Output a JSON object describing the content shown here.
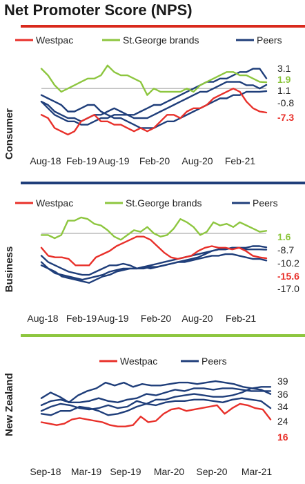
{
  "page": {
    "title": "Net Promoter Score (NPS)"
  },
  "colors": {
    "westpac": "#e8302a",
    "stgeorge": "#8dc63f",
    "peers": "#1f3e7a",
    "red_bar": "#d9291c",
    "navy_bar": "#1f3e7a",
    "green_bar": "#8dc63f"
  },
  "chart_data": [
    {
      "type": "line",
      "panel_label": "Consumer",
      "x_ticks": [
        "Aug-18",
        "Feb-19",
        "Aug-19",
        "Feb-20",
        "Aug-20",
        "Feb-21"
      ],
      "reference_line": 0,
      "ylim": [
        -18,
        8
      ],
      "series": [
        {
          "name": "Westpac",
          "color": "#e8302a",
          "values": [
            -8,
            -9,
            -12,
            -13,
            -14,
            -13,
            -10,
            -9,
            -8,
            -10,
            -10,
            -11,
            -11,
            -12,
            -13,
            -12,
            -13,
            -12,
            -10,
            -8,
            -8,
            -9,
            -7,
            -6,
            -6,
            -5,
            -3,
            -2,
            -1,
            0,
            -1,
            -4,
            -6,
            -7,
            -7.3
          ]
        },
        {
          "name": "St.George brands",
          "color": "#8dc63f",
          "values": [
            6,
            4,
            1,
            -1,
            0,
            1,
            2,
            3,
            3,
            4,
            7,
            5,
            4,
            4,
            3,
            2,
            -2,
            0,
            -1,
            -1,
            -1,
            -1,
            0,
            -1,
            1,
            2,
            3,
            4,
            5,
            5,
            4,
            4,
            3,
            2,
            1.9
          ]
        },
        {
          "name": "Peers",
          "color": "#1f3e7a",
          "values": [
            -4,
            -5,
            -7,
            -8,
            -9,
            -9,
            -10,
            -9,
            -8,
            -8,
            -7,
            -6,
            -7,
            -8,
            -8,
            -7,
            -6,
            -5,
            -5,
            -4,
            -3,
            -2,
            -1,
            0,
            1,
            2,
            2,
            3,
            3,
            4,
            5,
            5,
            6,
            6,
            3.1
          ]
        },
        {
          "name": "Peers",
          "color": "#1f3e7a",
          "values": [
            -4,
            -6,
            -8,
            -9,
            -10,
            -10,
            -11,
            -11,
            -10,
            -9,
            -9,
            -8,
            -8,
            -8,
            -9,
            -9,
            -9,
            -8,
            -7,
            -6,
            -5,
            -4,
            -3,
            -2,
            -1,
            -1,
            0,
            1,
            2,
            2,
            2,
            1,
            1,
            0,
            1.1
          ]
        },
        {
          "name": "Peers",
          "color": "#1f3e7a",
          "values": [
            -2,
            -3,
            -4,
            -5,
            -7,
            -7,
            -6,
            -5,
            -5,
            -7,
            -8,
            -9,
            -9,
            -10,
            -11,
            -12,
            -12,
            -12,
            -11,
            -10,
            -10,
            -9,
            -8,
            -7,
            -6,
            -5,
            -4,
            -3,
            -3,
            -2,
            -2,
            -1,
            -1,
            -1,
            -0.8
          ]
        }
      ],
      "end_labels": [
        {
          "text": "3.1",
          "color": "#222222",
          "bold": false,
          "value": 3.1
        },
        {
          "text": "1.9",
          "color": "#8dc63f",
          "bold": true,
          "value": 1.9
        },
        {
          "text": "1.1",
          "color": "#222222",
          "bold": false,
          "value": 1.1
        },
        {
          "text": "-0.8",
          "color": "#222222",
          "bold": false,
          "value": -0.8
        },
        {
          "text": "-7.3",
          "color": "#e8302a",
          "bold": true,
          "value": -7.3
        }
      ]
    },
    {
      "type": "line",
      "panel_label": "Business",
      "x_ticks": [
        "Aug-18",
        "Feb-19",
        "Aug-19",
        "Feb-20",
        "Aug-20",
        "Feb-21"
      ],
      "reference_line": 0,
      "ylim": [
        -32,
        13
      ],
      "series": [
        {
          "name": "Westpac",
          "color": "#e8302a",
          "values": [
            -9,
            -14,
            -15,
            -15,
            -16,
            -20,
            -20,
            -20,
            -15,
            -13,
            -11,
            -8,
            -6,
            -4,
            -2,
            -2,
            -4,
            -8,
            -12,
            -15,
            -16,
            -15,
            -14,
            -11,
            -9,
            -8,
            -9,
            -9,
            -10,
            -9,
            -11,
            -14,
            -15,
            -15.6
          ]
        },
        {
          "name": "St.George brands",
          "color": "#8dc63f",
          "values": [
            -1,
            -1,
            -3,
            -1,
            8,
            8,
            10,
            9,
            6,
            5,
            2,
            -2,
            -4,
            -1,
            2,
            1,
            4,
            0,
            -2,
            -1,
            3,
            9,
            7,
            4,
            -1,
            1,
            7,
            5,
            6,
            4,
            7,
            5,
            3,
            1,
            1.6
          ]
        },
        {
          "name": "Peers",
          "color": "#1f3e7a",
          "values": [
            -18,
            -22,
            -25,
            -26,
            -27,
            -28,
            -29,
            -28,
            -27,
            -26,
            -24,
            -23,
            -22,
            -22,
            -22,
            -22,
            -21,
            -21,
            -20,
            -19,
            -18,
            -18,
            -17,
            -16,
            -15,
            -14,
            -14,
            -13,
            -13,
            -14,
            -15,
            -16,
            -16,
            -17.0
          ]
        },
        {
          "name": "Peers",
          "color": "#1f3e7a",
          "values": [
            -14,
            -18,
            -20,
            -22,
            -24,
            -25,
            -26,
            -26,
            -24,
            -22,
            -20,
            -20,
            -19,
            -20,
            -22,
            -21,
            -20,
            -19,
            -18,
            -17,
            -16,
            -15,
            -14,
            -13,
            -12,
            -11,
            -10,
            -10,
            -9,
            -9,
            -10,
            -10,
            -10,
            -10.2
          ]
        },
        {
          "name": "Peers",
          "color": "#1f3e7a",
          "values": [
            -20,
            -22,
            -24,
            -27,
            -28,
            -29,
            -30,
            -31,
            -29,
            -27,
            -26,
            -24,
            -23,
            -22,
            -22,
            -21,
            -22,
            -21,
            -20,
            -19,
            -18,
            -17,
            -16,
            -15,
            -13,
            -11,
            -10,
            -10,
            -9,
            -9,
            -9,
            -8,
            -8,
            -8.7
          ]
        }
      ],
      "end_labels": [
        {
          "text": "1.6",
          "color": "#8dc63f",
          "bold": true,
          "value": 1.6
        },
        {
          "text": "-8.7",
          "color": "#222222",
          "bold": false,
          "value": -8.7
        },
        {
          "text": "-10.2",
          "color": "#222222",
          "bold": false,
          "value": -10.2
        },
        {
          "text": "-15.6",
          "color": "#e8302a",
          "bold": true,
          "value": -15.6
        },
        {
          "text": "-17.0",
          "color": "#222222",
          "bold": false,
          "value": -17.0
        }
      ]
    },
    {
      "type": "line",
      "panel_label": "New Zealand",
      "x_ticks": [
        "Sep-18",
        "Mar-19",
        "Sep-19",
        "Mar-20",
        "Sep-20",
        "Mar-21"
      ],
      "ylim": [
        5,
        45
      ],
      "series": [
        {
          "name": "Westpac",
          "color": "#e8302a",
          "values": [
            14,
            13,
            12,
            13,
            16,
            17,
            16,
            15,
            14,
            12,
            11,
            11,
            12,
            18,
            14,
            15,
            20,
            23,
            24,
            22,
            23,
            24,
            25,
            26,
            20,
            24,
            27,
            26,
            24,
            23,
            16
          ]
        },
        {
          "name": "Peers",
          "color": "#1f3e7a",
          "values": [
            31,
            35,
            32,
            28,
            33,
            36,
            38,
            42,
            40,
            42,
            39,
            41,
            40,
            40,
            41,
            42,
            42,
            41,
            42,
            43,
            42,
            41,
            39,
            38,
            39,
            39
          ]
        },
        {
          "name": "Peers",
          "color": "#1f3e7a",
          "values": [
            26,
            29,
            30,
            28,
            28,
            29,
            31,
            29,
            28,
            30,
            31,
            34,
            33,
            35,
            37,
            36,
            38,
            38,
            37,
            38,
            38,
            37,
            36,
            36,
            36
          ]
        },
        {
          "name": "Peers",
          "color": "#1f3e7a",
          "values": [
            22,
            25,
            27,
            26,
            24,
            23,
            24,
            26,
            24,
            25,
            29,
            27,
            30,
            30,
            32,
            33,
            34,
            33,
            32,
            32,
            33,
            35,
            38,
            37,
            34
          ]
        },
        {
          "name": "Peers",
          "color": "#1f3e7a",
          "values": [
            20,
            19,
            22,
            22,
            25,
            24,
            22,
            19,
            20,
            22,
            25,
            27,
            26,
            28,
            29,
            29,
            30,
            30,
            29,
            28,
            30,
            31,
            30,
            29,
            24
          ]
        }
      ],
      "end_labels": [
        {
          "text": "39",
          "color": "#222222",
          "bold": false,
          "value": 39
        },
        {
          "text": "36",
          "color": "#222222",
          "bold": false,
          "value": 36
        },
        {
          "text": "34",
          "color": "#222222",
          "bold": false,
          "value": 34
        },
        {
          "text": "24",
          "color": "#222222",
          "bold": false,
          "value": 24
        },
        {
          "text": "16",
          "color": "#e8302a",
          "bold": true,
          "value": 16
        }
      ]
    }
  ]
}
